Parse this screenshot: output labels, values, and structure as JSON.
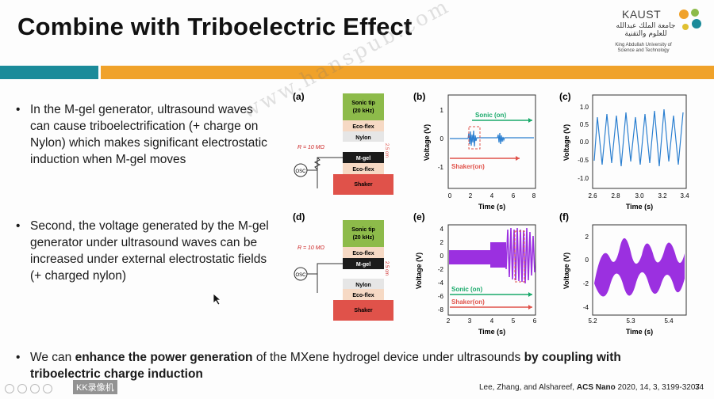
{
  "slide": {
    "title": "Combine with Triboelectric Effect",
    "logo": {
      "name": "KAUST",
      "arabic": "جامعة الملك عبدالله للعلوم والتقنية",
      "english_line1": "King Abdullah University of",
      "english_line2": "Science and Technology"
    },
    "colors": {
      "teal": "#1b8b9a",
      "orange": "#f0a22a",
      "plot_blue": "#2b7fd0",
      "plot_purple": "#9b30e0",
      "tip_green": "#8dbb4a",
      "shaker_red": "#e0524a"
    },
    "bullets": [
      "In the M-gel generator, ultrasound waves can cause triboelectrification (+ charge on Nylon) which makes significant electrostatic induction when M-gel moves",
      "Second, the voltage generated by the M-gel generator under ultrasound waves can be increased under external electrostatic fields (+ charged nylon)"
    ],
    "bottom_bullet": {
      "pre": "We can ",
      "bold1": "enhance the power generation",
      "mid": " of the MXene hydrogel device under ultrasounds ",
      "bold2": "by coupling with triboelectric charge induction"
    },
    "citation": {
      "authors": "Lee, Zhang, and Alshareef, ",
      "journal": "ACS Nano",
      "ref": " 2020, 14, 3, 3199-3207"
    },
    "slide_number": "34",
    "watermark": "www.hanspub.com",
    "recorder_label": "KK录像机"
  },
  "figure": {
    "panel_labels": {
      "a": "(a)",
      "b": "(b)",
      "c": "(c)",
      "d": "(d)",
      "e": "(e)",
      "f": "(f)"
    },
    "stack_a": [
      "Sonic tip\n(20 kHz)",
      "Eco-flex",
      "Nylon",
      "M-gel",
      "Eco-flex",
      "Shaker"
    ],
    "stack_d": [
      "Sonic tip\n(20 kHz)",
      "Eco-flex",
      "M-gel",
      "Nylon",
      "Eco-flex",
      "Shaker"
    ],
    "resistor": "R = 10 MΩ",
    "osc": "OSC",
    "gap": "2.5 cm",
    "sonic_on": "Sonic (on)",
    "shaker_on": "Shaker(on)",
    "ylabel": "Voltage (V)",
    "xlabel": "Time (s)"
  },
  "chart_data": [
    {
      "type": "line",
      "panel": "b",
      "x": [
        0,
        8
      ],
      "ylim": [
        -1,
        1
      ],
      "xticks": [
        "0",
        "2",
        "4",
        "6",
        "8"
      ],
      "yticks": [
        "1",
        "0",
        "-1"
      ],
      "xlabel": "Time (s)",
      "ylabel": "Voltage (V)"
    },
    {
      "type": "line",
      "panel": "c",
      "xlim": [
        2.6,
        3.4
      ],
      "ylim": [
        -1.0,
        1.0
      ],
      "xticks": [
        "2.6",
        "2.8",
        "3.0",
        "3.2",
        "3.4"
      ],
      "yticks": [
        "1.0",
        "0.5",
        "0.0",
        "-0.5",
        "-1.0"
      ],
      "xlabel": "Time (s)",
      "ylabel": "Voltage (V)"
    },
    {
      "type": "line",
      "panel": "e",
      "xlim": [
        2,
        6
      ],
      "ylim": [
        -8,
        4
      ],
      "xticks": [
        "2",
        "3",
        "4",
        "5",
        "6"
      ],
      "yticks": [
        "4",
        "2",
        "0",
        "-2",
        "-4",
        "-6",
        "-8"
      ],
      "xlabel": "Time (s)",
      "ylabel": "Voltage (V)"
    },
    {
      "type": "line",
      "panel": "f",
      "xlim": [
        5.2,
        5.45
      ],
      "ylim": [
        -4,
        2
      ],
      "xticks": [
        "5.2",
        "5.3",
        "5.4"
      ],
      "yticks": [
        "2",
        "0",
        "-2",
        "-4"
      ],
      "xlabel": "Time (s)",
      "ylabel": "Voltage (V)"
    }
  ]
}
